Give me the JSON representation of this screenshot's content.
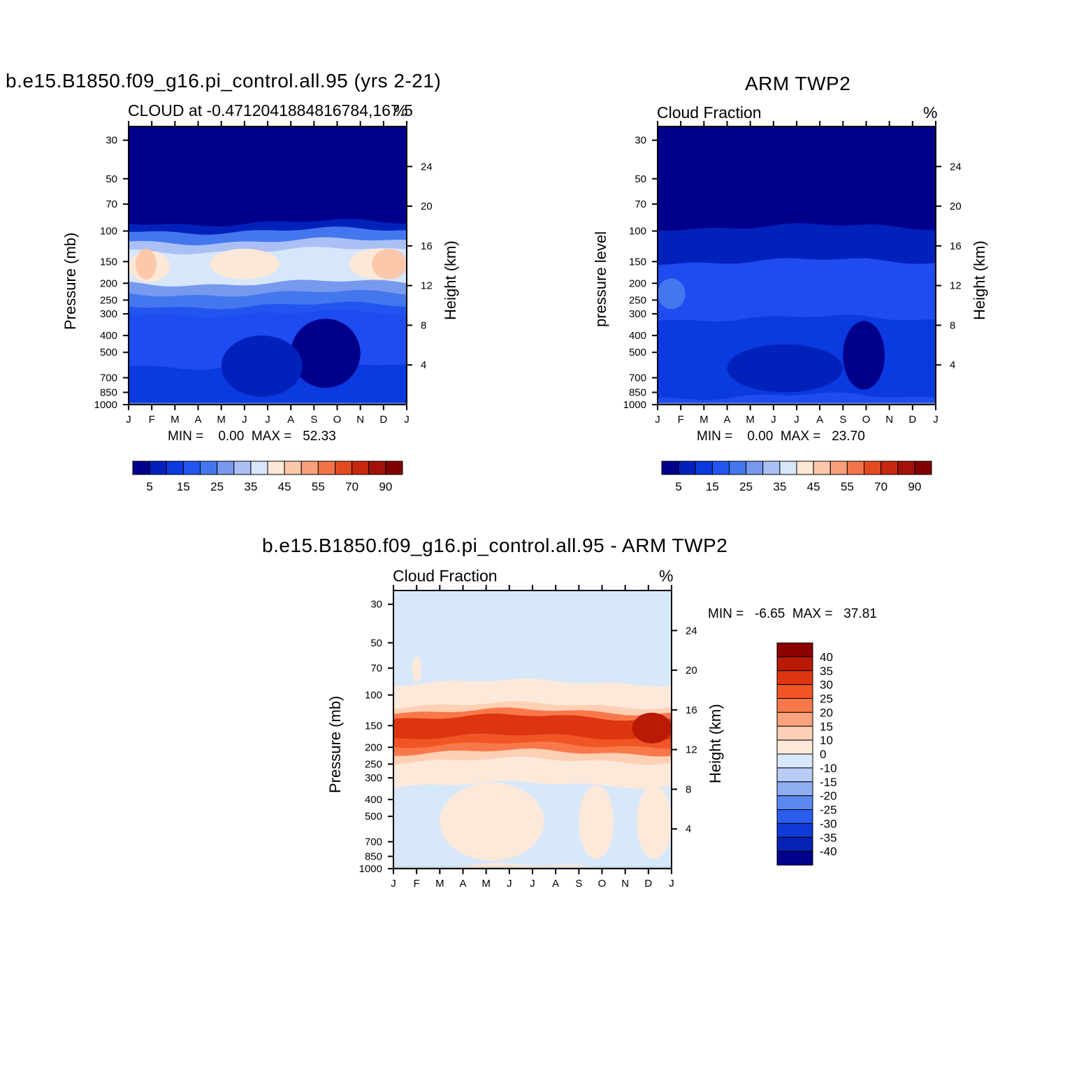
{
  "chart_data": [
    {
      "type": "heatmap",
      "panel": "model",
      "title": "b.e15.B1850.f09_g16.pi_control.all.95 (yrs 2-21)",
      "subtitle_left": "CLOUD at -0.4712041884816784,167.5",
      "subtitle_right": "%",
      "ylabel": "Pressure (mb)",
      "ylabel_right": "Height (km)",
      "x_ticks": [
        "J",
        "F",
        "M",
        "A",
        "M",
        "J",
        "J",
        "A",
        "S",
        "O",
        "N",
        "D",
        "J"
      ],
      "pressure_ticks": [
        30,
        50,
        70,
        100,
        150,
        200,
        250,
        300,
        400,
        500,
        700,
        850,
        1000
      ],
      "pressure_log_scale": true,
      "height_ticks": [
        4,
        8,
        12,
        16,
        20,
        24
      ],
      "minmax_text": "MIN =    0.00  MAX =   52.33",
      "min": 0.0,
      "max": 52.33,
      "colorbar": {
        "orientation": "horizontal",
        "labels": [
          "5",
          "15",
          "25",
          "35",
          "45",
          "55",
          "70",
          "90"
        ],
        "colors": [
          "#00008b",
          "#0022bb",
          "#0a3ae0",
          "#2255f0",
          "#4477ee",
          "#7799ee",
          "#aac0f5",
          "#d6e6fb",
          "#fde7d6",
          "#fbc8ab",
          "#f8a07a",
          "#f2744a",
          "#e34a20",
          "#c8280f",
          "#a31208",
          "#800000"
        ]
      },
      "bands": [
        {
          "p_top": 10,
          "p_bot": 90,
          "value": 0,
          "color": "#00008b"
        },
        {
          "p_top": 90,
          "p_bot": 100,
          "value": 5,
          "color": "#0022bb"
        },
        {
          "p_top": 100,
          "p_bot": 115,
          "value": 15,
          "color": "#4477ee"
        },
        {
          "p_top": 115,
          "p_bot": 130,
          "value": 25,
          "color": "#aac0f5"
        },
        {
          "p_top": 130,
          "p_bot": 200,
          "value": 35,
          "color": "#d6e6fb"
        },
        {
          "p_top": 200,
          "p_bot": 230,
          "value": 25,
          "color": "#7799ee"
        },
        {
          "p_top": 230,
          "p_bot": 270,
          "value": 15,
          "color": "#4477ee"
        },
        {
          "p_top": 270,
          "p_bot": 300,
          "value": 10,
          "color": "#2255f0"
        },
        {
          "p_top": 300,
          "p_bot": 600,
          "value": 10,
          "color": "#1f4cf0"
        },
        {
          "p_top": 600,
          "p_bot": 1000,
          "value": 5,
          "color": "#0a3ae0"
        }
      ],
      "features": [
        {
          "kind": "warm",
          "month_from": 0,
          "month_to": 1.8,
          "p_center": 160,
          "value": 45,
          "color": "#fde7d6"
        },
        {
          "kind": "warm",
          "month_from": 0.3,
          "month_to": 1.2,
          "p_center": 155,
          "value": 50,
          "color": "#fbc8ab"
        },
        {
          "kind": "warm",
          "month_from": 3.5,
          "month_to": 6.5,
          "p_center": 155,
          "value": 45,
          "color": "#fde7d6"
        },
        {
          "kind": "warm",
          "month_from": 9.5,
          "month_to": 12,
          "p_center": 155,
          "value": 45,
          "color": "#fde7d6"
        },
        {
          "kind": "warm",
          "month_from": 10.5,
          "month_to": 12,
          "p_center": 155,
          "value": 50,
          "color": "#fbc8ab"
        },
        {
          "kind": "low",
          "month_from": 7,
          "month_to": 10,
          "p_top": 320,
          "p_bot": 800,
          "value": 0,
          "color": "#00008b"
        },
        {
          "kind": "low",
          "month_from": 4,
          "month_to": 7.5,
          "p_top": 400,
          "p_bot": 900,
          "value": 5,
          "color": "#0022bb"
        }
      ]
    },
    {
      "type": "heatmap",
      "panel": "obs",
      "title": "ARM TWP2",
      "subtitle_left": "Cloud Fraction",
      "subtitle_right": "%",
      "ylabel": "pressure level",
      "ylabel_right": "Height (km)",
      "x_ticks": [
        "J",
        "F",
        "M",
        "A",
        "M",
        "J",
        "J",
        "A",
        "S",
        "O",
        "N",
        "D",
        "J"
      ],
      "pressure_ticks": [
        30,
        50,
        70,
        100,
        150,
        200,
        250,
        300,
        400,
        500,
        700,
        850,
        1000
      ],
      "pressure_log_scale": true,
      "height_ticks": [
        4,
        8,
        12,
        16,
        20,
        24
      ],
      "minmax_text": "MIN =    0.00  MAX =   23.70",
      "min": 0.0,
      "max": 23.7,
      "colorbar": {
        "orientation": "horizontal",
        "labels": [
          "5",
          "15",
          "25",
          "35",
          "45",
          "55",
          "70",
          "90"
        ],
        "colors": [
          "#00008b",
          "#0022bb",
          "#0a3ae0",
          "#2255f0",
          "#4477ee",
          "#7799ee",
          "#aac0f5",
          "#d6e6fb",
          "#fde7d6",
          "#fbc8ab",
          "#f8a07a",
          "#f2744a",
          "#e34a20",
          "#c8280f",
          "#a31208",
          "#800000"
        ]
      },
      "bands": [
        {
          "p_top": 10,
          "p_bot": 95,
          "value": 0,
          "color": "#00008b"
        },
        {
          "p_top": 95,
          "p_bot": 150,
          "value": 5,
          "color": "#0022bb"
        },
        {
          "p_top": 150,
          "p_bot": 320,
          "value": 10,
          "color": "#1f4cf0"
        },
        {
          "p_top": 320,
          "p_bot": 900,
          "value": 5,
          "color": "#0a3ae0"
        },
        {
          "p_top": 900,
          "p_bot": 1000,
          "value": 10,
          "color": "#1f4cf0"
        }
      ],
      "features": [
        {
          "kind": "warm",
          "month_from": 0,
          "month_to": 1.2,
          "p_center": 230,
          "value": 20,
          "color": "#4477ee"
        },
        {
          "kind": "low",
          "month_from": 8,
          "month_to": 9.8,
          "p_top": 330,
          "p_bot": 820,
          "value": 0,
          "color": "#00008b"
        },
        {
          "kind": "low",
          "month_from": 3,
          "month_to": 8,
          "p_top": 450,
          "p_bot": 850,
          "value": 5,
          "color": "#0022bb"
        }
      ]
    },
    {
      "type": "heatmap",
      "panel": "difference",
      "title": "b.e15.B1850.f09_g16.pi_control.all.95 - ARM TWP2",
      "subtitle_left": "Cloud Fraction",
      "subtitle_right": "%",
      "ylabel": "Pressure (mb)",
      "ylabel_right": "Height (km)",
      "x_ticks": [
        "J",
        "F",
        "M",
        "A",
        "M",
        "J",
        "J",
        "A",
        "S",
        "O",
        "N",
        "D",
        "J"
      ],
      "pressure_ticks": [
        30,
        50,
        70,
        100,
        150,
        200,
        250,
        300,
        400,
        500,
        700,
        850,
        1000
      ],
      "pressure_log_scale": true,
      "height_ticks": [
        4,
        8,
        12,
        16,
        20,
        24
      ],
      "minmax_text": "MIN =   -6.65  MAX =   37.81",
      "min": -6.65,
      "max": 37.81,
      "colorbar": {
        "orientation": "vertical",
        "labels": [
          "40",
          "35",
          "30",
          "25",
          "20",
          "15",
          "10",
          "0",
          "-10",
          "-15",
          "-20",
          "-25",
          "-30",
          "-35",
          "-40"
        ],
        "colors": [
          "#8b0000",
          "#b81a05",
          "#dd3510",
          "#f25525",
          "#f8784a",
          "#fca27f",
          "#fdd0b5",
          "#fde9da",
          "#d8e8fb",
          "#b8ccf6",
          "#90aef2",
          "#5a87f0",
          "#2a5cf0",
          "#0f3ad8",
          "#0522b6",
          "#00008b"
        ]
      },
      "bands": [
        {
          "p_top": 10,
          "p_bot": 85,
          "value": -5,
          "color": "#d8e8fb"
        },
        {
          "p_top": 85,
          "p_bot": 115,
          "value": 5,
          "color": "#fde9da"
        },
        {
          "p_top": 115,
          "p_bot": 125,
          "value": 12,
          "color": "#fdd0b5"
        },
        {
          "p_top": 125,
          "p_bot": 135,
          "value": 20,
          "color": "#f8784a"
        },
        {
          "p_top": 135,
          "p_bot": 175,
          "value": 30,
          "color": "#dd3510"
        },
        {
          "p_top": 175,
          "p_bot": 195,
          "value": 25,
          "color": "#f25525"
        },
        {
          "p_top": 195,
          "p_bot": 215,
          "value": 20,
          "color": "#f8784a"
        },
        {
          "p_top": 215,
          "p_bot": 240,
          "value": 12,
          "color": "#fdd0b5"
        },
        {
          "p_top": 240,
          "p_bot": 330,
          "value": 5,
          "color": "#fde9da"
        },
        {
          "p_top": 330,
          "p_bot": 980,
          "value": -5,
          "color": "#d8e8fb"
        },
        {
          "p_top": 980,
          "p_bot": 1000,
          "value": 5,
          "color": "#fde9da"
        }
      ],
      "features": [
        {
          "kind": "warm",
          "month_from": 2,
          "month_to": 6.5,
          "p_top": 320,
          "p_bot": 900,
          "value": 5,
          "color": "#fde9da"
        },
        {
          "kind": "warm",
          "month_from": 8,
          "month_to": 9.5,
          "p_top": 330,
          "p_bot": 880,
          "value": 5,
          "color": "#fde9da"
        },
        {
          "kind": "warm",
          "month_from": 10.5,
          "month_to": 12,
          "p_top": 330,
          "p_bot": 880,
          "value": 5,
          "color": "#fde9da"
        },
        {
          "kind": "warm",
          "month_from": 0.8,
          "month_to": 1.2,
          "p_top": 60,
          "p_bot": 85,
          "value": 5,
          "color": "#fde9da"
        },
        {
          "kind": "warm",
          "month_from": 10.3,
          "month_to": 12,
          "p_center": 155,
          "value": 35,
          "color": "#b81a05"
        }
      ]
    }
  ]
}
